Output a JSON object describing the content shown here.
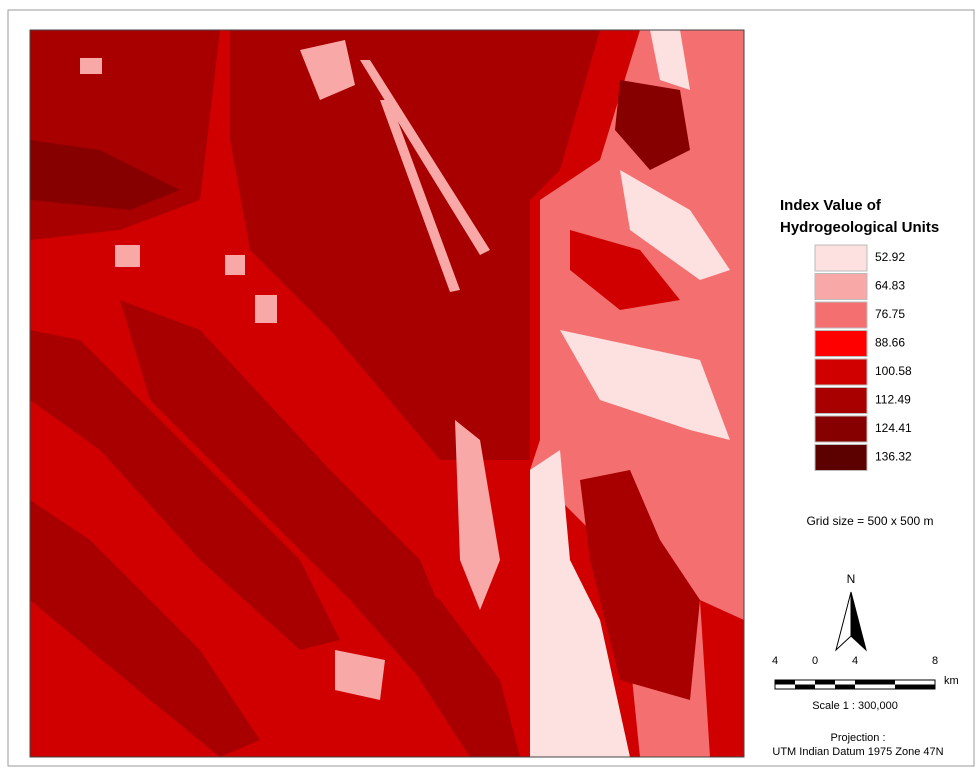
{
  "legend": {
    "title_line1": "Index Value of",
    "title_line2": "Hydrogeological Units",
    "items": [
      {
        "label": "52.92",
        "color": "#fde0e0"
      },
      {
        "label": "64.83",
        "color": "#f9a8a8"
      },
      {
        "label": "76.75",
        "color": "#f47070"
      },
      {
        "label": "88.66",
        "color": "#ff0000"
      },
      {
        "label": "100.58",
        "color": "#d10000"
      },
      {
        "label": "112.49",
        "color": "#a80000"
      },
      {
        "label": "124.41",
        "color": "#870000"
      },
      {
        "label": "136.32",
        "color": "#5c0000"
      }
    ]
  },
  "grid_note": "Grid size = 500 x 500 m",
  "north": "N",
  "scale_bar": {
    "ticks": [
      "4",
      "0",
      "4",
      "8"
    ],
    "unit": "km",
    "scale": "Scale 1 : 300,000"
  },
  "projection": {
    "line1": "Projection :",
    "line2": "UTM Indian Datum 1975 Zone 47N"
  }
}
